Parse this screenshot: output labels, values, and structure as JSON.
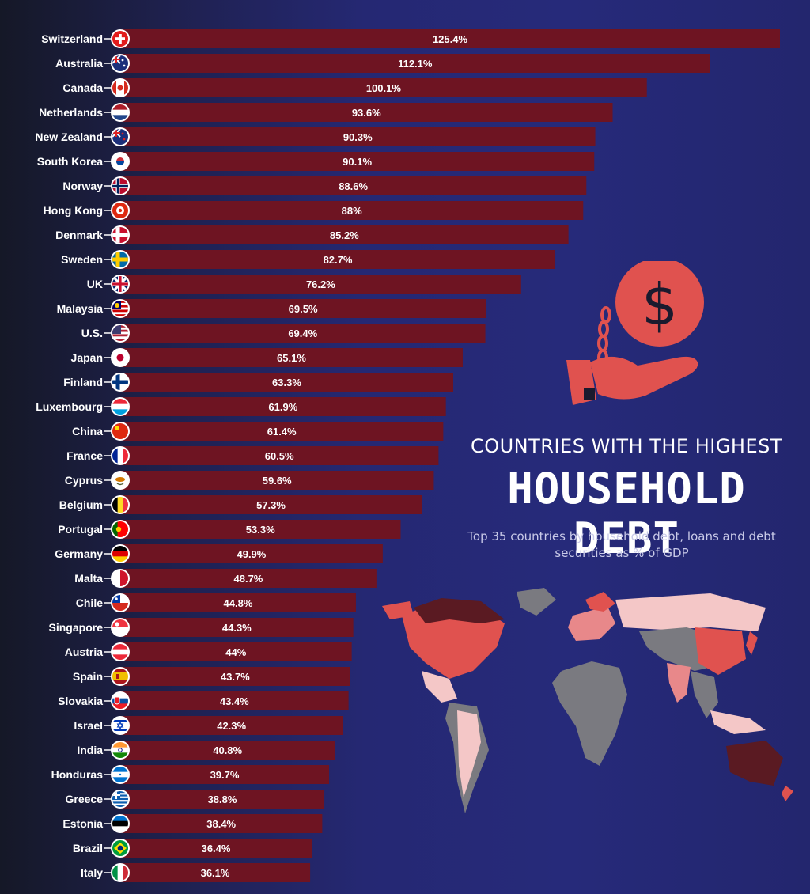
{
  "title": {
    "line1": "COUNTRIES WITH THE HIGHEST",
    "line2": "Household Debt",
    "description": "Top 35 countries by household debt, loans and debt securities as % of GDP"
  },
  "colors": {
    "bar": "#6e1422",
    "accent": "#e0524f",
    "background": "#262a7a"
  },
  "icons": [
    "money-in-chained-hand-icon",
    "world-map-illustration"
  ],
  "chart_data": {
    "type": "bar",
    "orientation": "horizontal",
    "title": "Household Debt",
    "unit": "% of GDP",
    "categories": [
      "Switzerland",
      "Australia",
      "Canada",
      "Netherlands",
      "New Zealand",
      "South Korea",
      "Norway",
      "Hong Kong",
      "Denmark",
      "Sweden",
      "UK",
      "Malaysia",
      "U.S.",
      "Japan",
      "Finland",
      "Luxembourg",
      "China",
      "France",
      "Cyprus",
      "Belgium",
      "Portugal",
      "Germany",
      "Malta",
      "Chile",
      "Singapore",
      "Austria",
      "Spain",
      "Slovakia",
      "Israel",
      "India",
      "Honduras",
      "Greece",
      "Estonia",
      "Brazil",
      "Italy"
    ],
    "values": [
      125.4,
      112.1,
      100.1,
      93.6,
      90.3,
      90.1,
      88.6,
      88,
      85.2,
      82.7,
      76.2,
      69.5,
      69.4,
      65.1,
      63.3,
      61.9,
      61.4,
      60.5,
      59.6,
      57.3,
      53.3,
      49.9,
      48.7,
      44.8,
      44.3,
      44,
      43.7,
      43.4,
      42.3,
      40.8,
      39.7,
      38.8,
      38.4,
      36.4,
      36.1
    ],
    "value_labels": [
      "125.4%",
      "112.1%",
      "100.1%",
      "93.6%",
      "90.3%",
      "90.1%",
      "88.6%",
      "88%",
      "85.2%",
      "82.7%",
      "76.2%",
      "69.5%",
      "69.4%",
      "65.1%",
      "63.3%",
      "61.9%",
      "61.4%",
      "60.5%",
      "59.6%",
      "57.3%",
      "53.3%",
      "49.9%",
      "48.7%",
      "44.8%",
      "44.3%",
      "44%",
      "43.7%",
      "43.4%",
      "42.3%",
      "40.8%",
      "39.7%",
      "38.8%",
      "38.4%",
      "36.4%",
      "36.1%"
    ],
    "flags": [
      "ch",
      "au",
      "ca",
      "nl",
      "nz",
      "kr",
      "no",
      "hk",
      "dk",
      "se",
      "uk",
      "my",
      "us",
      "jp",
      "fi",
      "lu",
      "cn",
      "fr",
      "cy",
      "be",
      "pt",
      "de",
      "mt",
      "cl",
      "sg",
      "at",
      "es",
      "sk",
      "il",
      "in",
      "hn",
      "gr",
      "ee",
      "br",
      "it"
    ],
    "xlabel": "",
    "ylabel": "",
    "grid": false,
    "legend": "none"
  }
}
